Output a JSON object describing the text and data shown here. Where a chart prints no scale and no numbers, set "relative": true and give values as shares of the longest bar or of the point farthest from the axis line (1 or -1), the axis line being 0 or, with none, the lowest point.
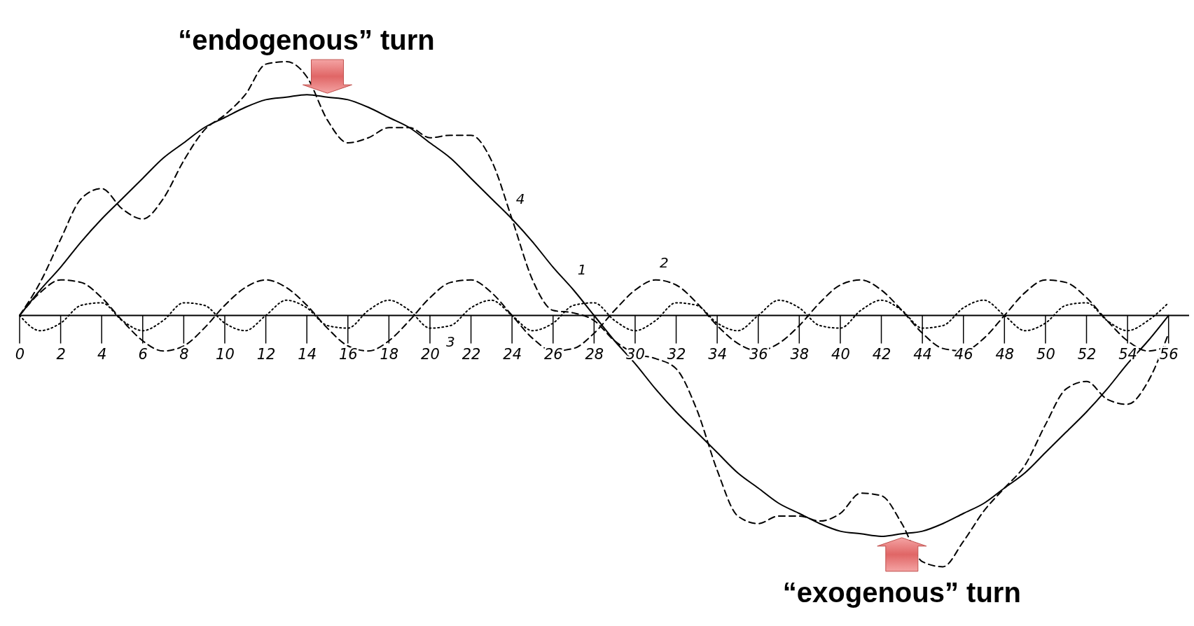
{
  "chart_data": {
    "type": "line",
    "relative": true,
    "x": [
      0,
      1,
      2,
      3,
      4,
      5,
      6,
      7,
      8,
      9,
      10,
      11,
      12,
      13,
      14,
      15,
      16,
      17,
      18,
      19,
      20,
      21,
      22,
      23,
      24,
      25,
      26,
      27,
      28,
      29,
      30,
      31,
      32,
      33,
      34,
      35,
      36,
      37,
      38,
      39,
      40,
      41,
      42,
      43,
      44,
      45,
      46,
      47,
      48,
      49,
      50,
      51,
      52,
      53,
      54,
      55,
      56
    ],
    "xlim": [
      0,
      57
    ],
    "xticks": [
      0,
      2,
      4,
      6,
      8,
      10,
      12,
      14,
      16,
      18,
      20,
      22,
      24,
      26,
      28,
      30,
      32,
      34,
      36,
      38,
      40,
      42,
      44,
      46,
      48,
      50,
      52,
      54,
      56
    ],
    "series": [
      {
        "name": "1",
        "color": "#000000",
        "line_style": "solid",
        "values": [
          0,
          0.1,
          0.19,
          0.29,
          0.38,
          0.46,
          0.54,
          0.62,
          0.68,
          0.74,
          0.78,
          0.82,
          0.85,
          0.86,
          0.87,
          0.86,
          0.85,
          0.82,
          0.78,
          0.74,
          0.68,
          0.62,
          0.54,
          0.46,
          0.38,
          0.29,
          0.19,
          0.1,
          0,
          -0.1,
          -0.19,
          -0.29,
          -0.38,
          -0.46,
          -0.54,
          -0.62,
          -0.68,
          -0.74,
          -0.78,
          -0.82,
          -0.85,
          -0.86,
          -0.87,
          -0.86,
          -0.85,
          -0.82,
          -0.78,
          -0.74,
          -0.68,
          -0.62,
          -0.54,
          -0.46,
          -0.38,
          -0.29,
          -0.19,
          -0.1,
          0
        ]
      },
      {
        "name": "2",
        "color": "#000000",
        "line_style": "dashed",
        "values": [
          0,
          0.09,
          0.14,
          0.13,
          0.07,
          -0.02,
          -0.1,
          -0.14,
          -0.12,
          -0.05,
          0.04,
          0.11,
          0.14,
          0.11,
          0.04,
          -0.05,
          -0.12,
          -0.14,
          -0.1,
          -0.02,
          0.07,
          0.13,
          0.14,
          0.09,
          0,
          -0.09,
          -0.14,
          -0.13,
          -0.07,
          0.02,
          0.1,
          0.14,
          0.12,
          0.05,
          -0.04,
          -0.11,
          -0.14,
          -0.11,
          -0.04,
          0.05,
          0.12,
          0.14,
          0.1,
          0.02,
          -0.07,
          -0.13,
          -0.14,
          -0.09,
          0,
          0.09,
          0.14,
          0.13,
          0.07,
          -0.02,
          -0.1,
          -0.14,
          -0.12
        ]
      },
      {
        "name": "3",
        "color": "#000000",
        "line_style": "dotted",
        "values": [
          0,
          -0.06,
          -0.03,
          0.04,
          0.05,
          -0.02,
          -0.06,
          -0.02,
          0.05,
          0.04,
          -0.03,
          -0.06,
          0,
          0.06,
          0.03,
          -0.04,
          -0.05,
          0.02,
          0.06,
          0.02,
          -0.05,
          -0.04,
          0.03,
          0.06,
          0,
          -0.06,
          -0.03,
          0.04,
          0.05,
          -0.02,
          -0.06,
          -0.02,
          0.05,
          0.04,
          -0.03,
          -0.06,
          0,
          0.06,
          0.03,
          -0.04,
          -0.05,
          0.02,
          0.06,
          0.02,
          -0.05,
          -0.04,
          0.03,
          0.06,
          0,
          -0.06,
          -0.03,
          0.04,
          0.05,
          -0.02,
          -0.06,
          -0.02,
          0.05
        ]
      },
      {
        "name": "4",
        "color": "#000000",
        "line_style": "dashed",
        "values": [
          0,
          0.13,
          0.3,
          0.46,
          0.5,
          0.42,
          0.38,
          0.46,
          0.61,
          0.73,
          0.79,
          0.87,
          0.99,
          1.0,
          0.94,
          0.77,
          0.68,
          0.7,
          0.74,
          0.74,
          0.7,
          0.71,
          0.71,
          0.61,
          0.38,
          0.14,
          0.02,
          0.01,
          -0.02,
          -0.1,
          -0.15,
          -0.17,
          -0.21,
          -0.37,
          -0.61,
          -0.79,
          -0.82,
          -0.79,
          -0.79,
          -0.81,
          -0.78,
          -0.7,
          -0.71,
          -0.82,
          -0.97,
          -0.99,
          -0.89,
          -0.77,
          -0.68,
          -0.59,
          -0.43,
          -0.29,
          -0.26,
          -0.33,
          -0.35,
          -0.26,
          -0.07
        ]
      }
    ],
    "annotations": [
      {
        "text": "“endogenous” turn",
        "x": 15,
        "y": 0.87
      },
      {
        "text": "“exogenous” turn",
        "x": 43,
        "y": -0.87
      }
    ]
  }
}
